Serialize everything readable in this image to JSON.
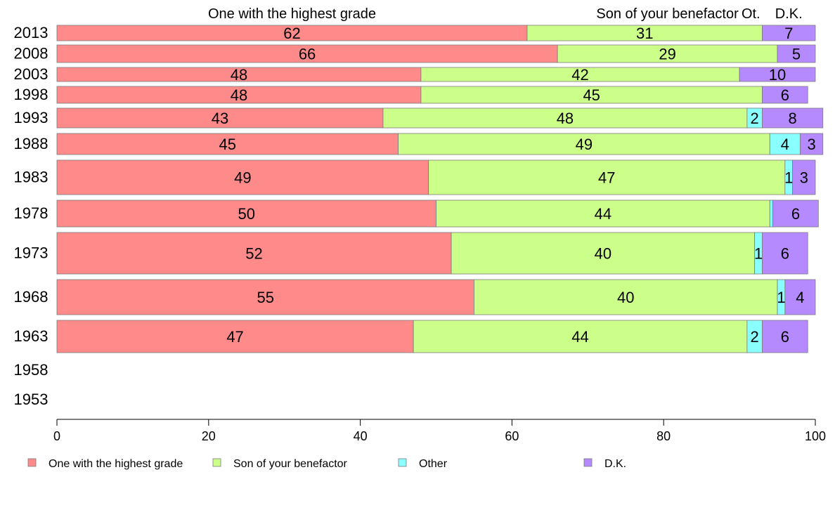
{
  "chart_data": {
    "type": "bar",
    "orientation": "horizontal",
    "stacked": true,
    "categories": [
      "2013",
      "2008",
      "2003",
      "1998",
      "1993",
      "1988",
      "1983",
      "1978",
      "1973",
      "1968",
      "1963",
      "1958",
      "1953"
    ],
    "series": [
      {
        "name": "One with the highest grade",
        "color": "#ff8a8a",
        "values": [
          62,
          66,
          48,
          48,
          43,
          45,
          49,
          50,
          52,
          55,
          47,
          null,
          null
        ]
      },
      {
        "name": "Son of your benefactor",
        "color": "#ccff8a",
        "values": [
          31,
          29,
          42,
          45,
          48,
          49,
          47,
          44,
          40,
          40,
          44,
          null,
          null
        ]
      },
      {
        "name": "Other",
        "color": "#8affff",
        "values": [
          0,
          0,
          0,
          0,
          2,
          4,
          1,
          0.4,
          1,
          1,
          2,
          null,
          null
        ]
      },
      {
        "name": "D.K.",
        "color": "#b68aff",
        "values": [
          7,
          5,
          10,
          6,
          8,
          3,
          3,
          6,
          6,
          4,
          6,
          null,
          null
        ]
      }
    ],
    "top_labels": [
      "One with the highest grade",
      "Son of your benefactor",
      "Ot.",
      "D.K."
    ],
    "xlim": [
      0,
      100
    ],
    "x_ticks": [
      0,
      20,
      40,
      60,
      80,
      100
    ],
    "legend_position": "bottom",
    "grid": false
  }
}
